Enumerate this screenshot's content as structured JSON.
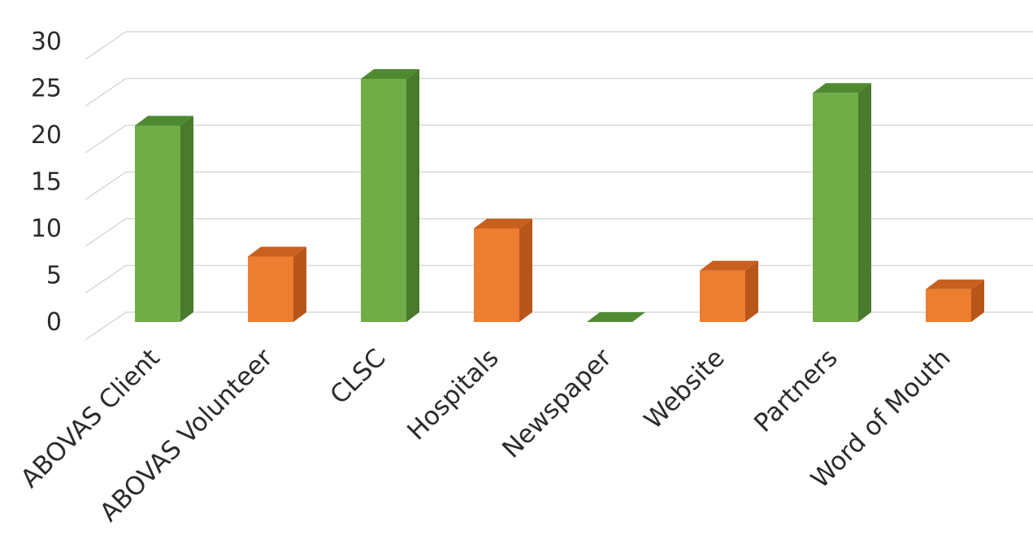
{
  "chart_data": {
    "type": "bar",
    "title": "",
    "xlabel": "",
    "ylabel": "",
    "ylim": [
      0,
      30
    ],
    "yticks": [
      0,
      5,
      10,
      15,
      20,
      25,
      30
    ],
    "grid": true,
    "legend": "none",
    "style": "3d-columns",
    "categories": [
      "ABOVAS Client",
      "ABOVAS Volunteer",
      "CLSC",
      "Hospitals",
      "Newspaper",
      "Website",
      "Partners",
      "Word of Mouth"
    ],
    "values": [
      21,
      7,
      26,
      10,
      0,
      5.5,
      24.5,
      3.5
    ],
    "bar_colors": [
      "#70ad47",
      "#ed7d31",
      "#70ad47",
      "#ed7d31",
      "#70ad47",
      "#ed7d31",
      "#70ad47",
      "#ed7d31"
    ],
    "bar_side_colors": [
      "#4a7a2c",
      "#b8561a",
      "#4a7a2c",
      "#b8561a",
      "#4a7a2c",
      "#b8561a",
      "#4a7a2c",
      "#b8561a"
    ],
    "bar_top_colors": [
      "#4f8a30",
      "#c9601f",
      "#4f8a30",
      "#c9601f",
      "#4f8a30",
      "#c9601f",
      "#4f8a30",
      "#c9601f"
    ]
  }
}
